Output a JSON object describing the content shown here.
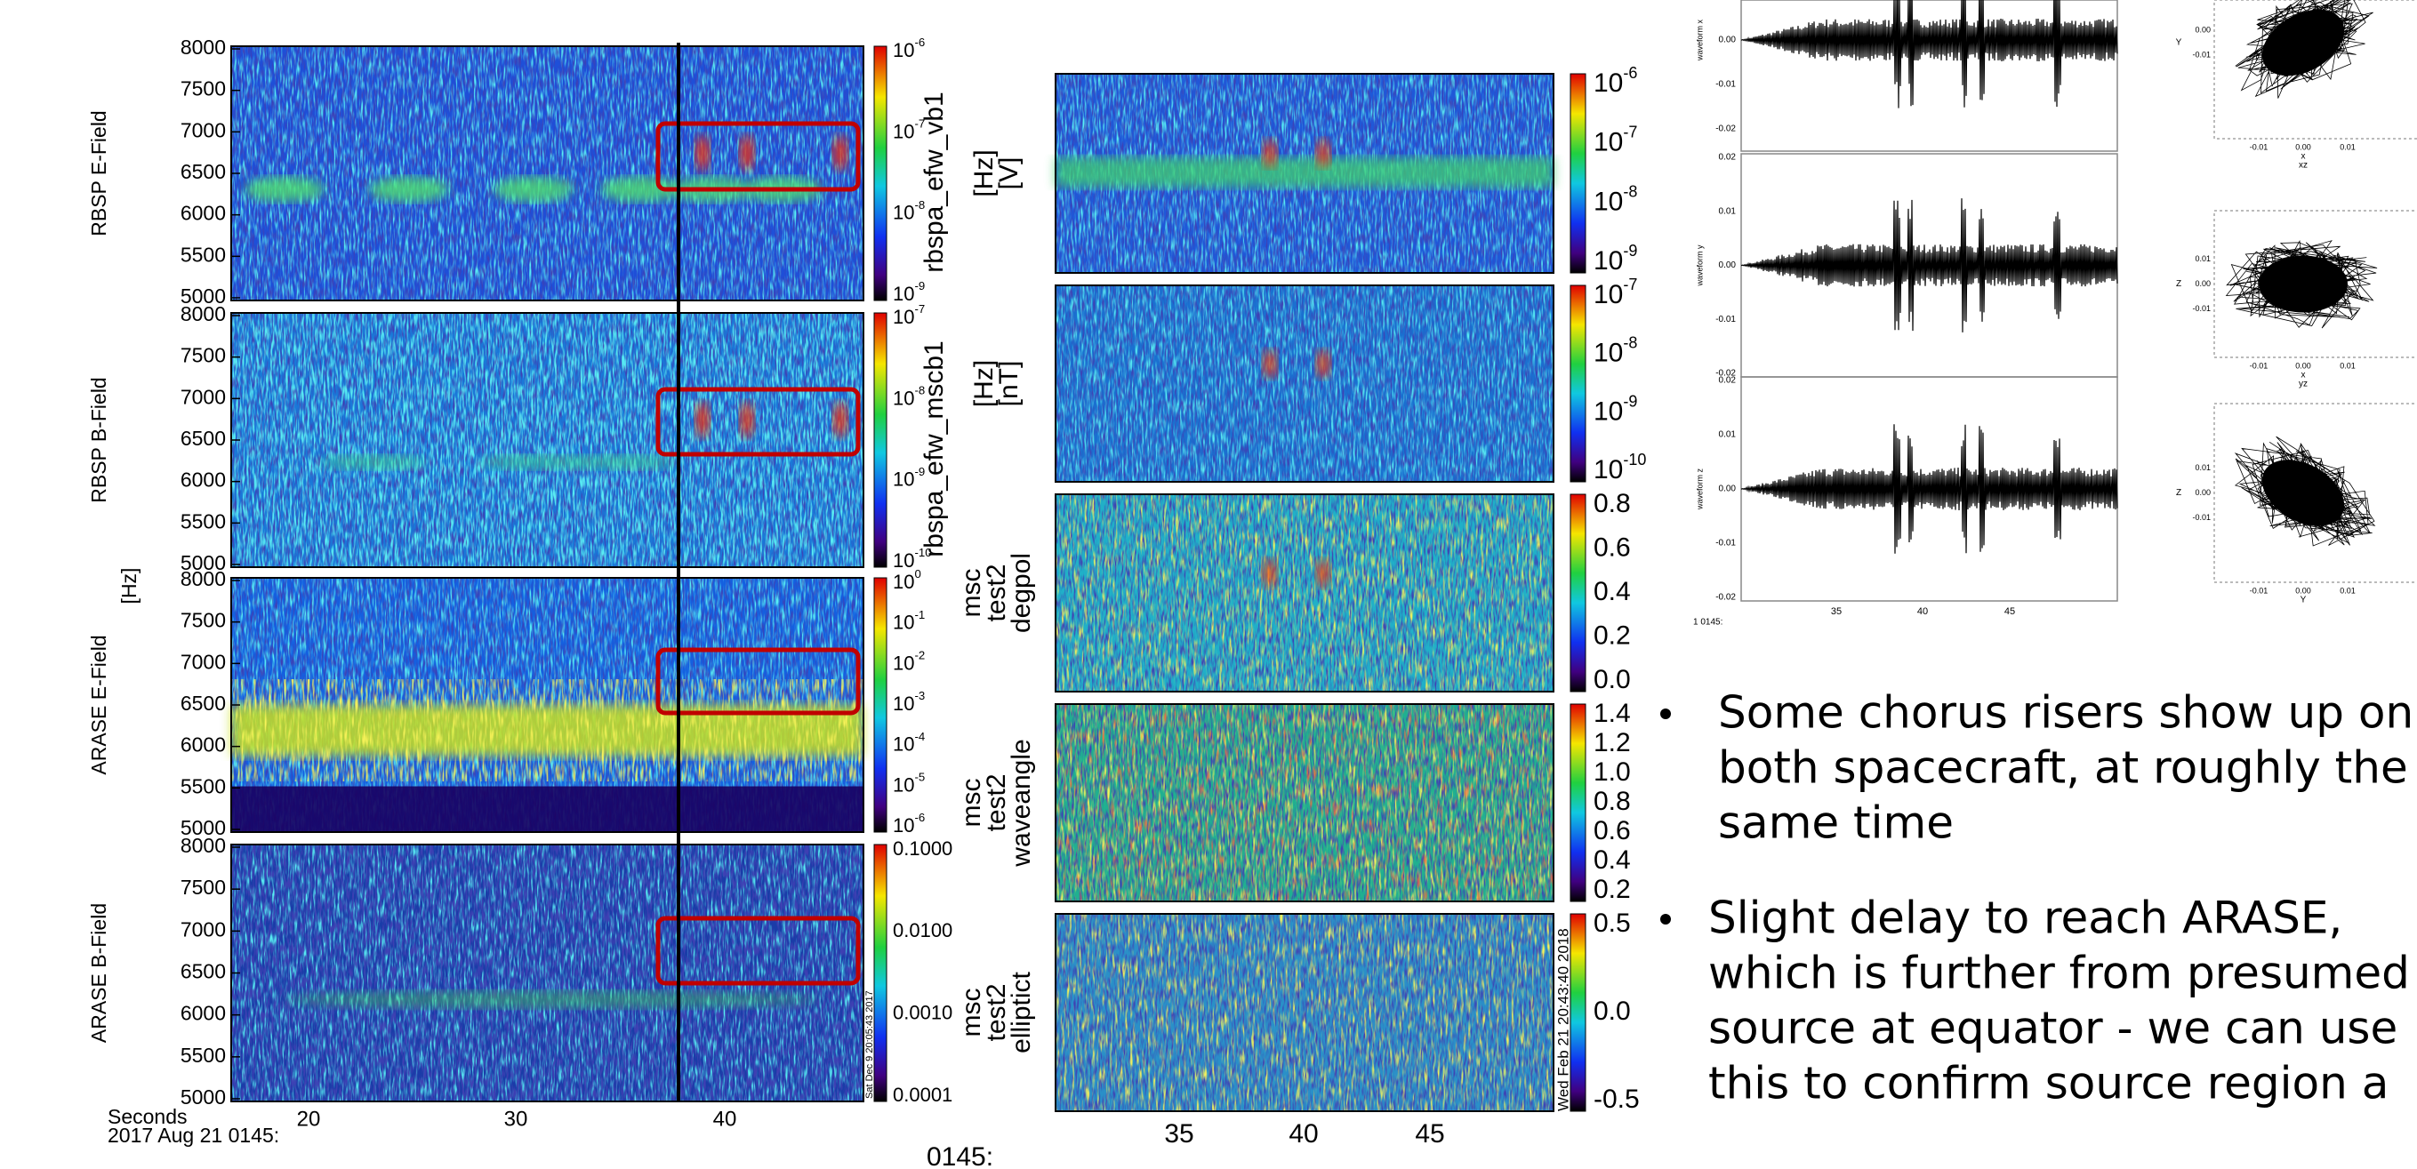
{
  "left_panel": {
    "panels": [
      {
        "label": "RBSP E-Field",
        "yticks": [
          "8000",
          "7500",
          "7000",
          "6500",
          "6000",
          "5500",
          "5000"
        ],
        "colorbar_title": "rbspa_efw_vb1",
        "colorbar_ticks": [
          {
            "base": "10",
            "exp": "-6"
          },
          {
            "base": "10",
            "exp": "-7"
          },
          {
            "base": "10",
            "exp": "-8"
          },
          {
            "base": "10",
            "exp": "-9"
          }
        ]
      },
      {
        "label": "RBSP B-Field",
        "yticks": [
          "8000",
          "7500",
          "7000",
          "6500",
          "6000",
          "5500",
          "5000"
        ],
        "colorbar_title": "rbspa_efw_mscb1",
        "colorbar_ticks": [
          {
            "base": "10",
            "exp": "-7"
          },
          {
            "base": "10",
            "exp": "-8"
          },
          {
            "base": "10",
            "exp": "-9"
          },
          {
            "base": "10",
            "exp": "-10"
          }
        ]
      },
      {
        "label": "ARASE E-Field",
        "yticks": [
          "8000",
          "7500",
          "7000",
          "6500",
          "6000",
          "5500",
          "5000"
        ],
        "colorbar_ticks": [
          {
            "base": "10",
            "exp": "0"
          },
          {
            "base": "10",
            "exp": "-1"
          },
          {
            "base": "10",
            "exp": "-2"
          },
          {
            "base": "10",
            "exp": "-3"
          },
          {
            "base": "10",
            "exp": "-4"
          },
          {
            "base": "10",
            "exp": "-5"
          },
          {
            "base": "10",
            "exp": "-6"
          }
        ]
      },
      {
        "label": "ARASE B-Field",
        "yticks": [
          "8000",
          "7500",
          "7000",
          "6500",
          "6000",
          "5500",
          "5000"
        ],
        "colorbar_ticks": [
          "0.1000",
          "0.0100",
          "0.0010",
          "0.0001"
        ]
      }
    ],
    "y_unit": "[Hz]",
    "xticks": [
      "20",
      "30",
      "40"
    ],
    "x_title": "Seconds",
    "x_date": "2017 Aug 21 0145:",
    "stamp": "Sat Dec 9 20:05:43 2017"
  },
  "middle_panel": {
    "panels": [
      {
        "title_lines": [
          "[Hz]",
          "[V]"
        ],
        "colorbar_ticks": [
          {
            "base": "10",
            "exp": "-6"
          },
          {
            "base": "10",
            "exp": "-7"
          },
          {
            "base": "10",
            "exp": "-8"
          },
          {
            "base": "10",
            "exp": "-9"
          }
        ]
      },
      {
        "title_lines": [
          "[Hz]",
          "[nT]"
        ],
        "colorbar_ticks": [
          {
            "base": "10",
            "exp": "-7"
          },
          {
            "base": "10",
            "exp": "-8"
          },
          {
            "base": "10",
            "exp": "-9"
          },
          {
            "base": "10",
            "exp": "-10"
          }
        ]
      },
      {
        "title_lines": [
          "msc",
          "test2",
          "degpol"
        ],
        "colorbar_ticks": [
          "0.8",
          "0.6",
          "0.4",
          "0.2",
          "0.0"
        ]
      },
      {
        "title_lines": [
          "msc",
          "test2",
          "waveangle"
        ],
        "colorbar_ticks": [
          "1.4",
          "1.2",
          "1.0",
          "0.8",
          "0.6",
          "0.4",
          "0.2"
        ]
      },
      {
        "title_lines": [
          "msc",
          "test2",
          "elliptict"
        ],
        "colorbar_ticks": [
          "0.5",
          "0.0",
          "-0.5"
        ]
      }
    ],
    "xticks": [
      "35",
      "40",
      "45"
    ],
    "x_date": "0145:",
    "stamp": "Wed Feb 21 20:43:40 2018"
  },
  "waveforms": {
    "panels": [
      {
        "label": "waveform x",
        "yticks": [
          "0.00",
          "-0.01",
          "-0.02"
        ]
      },
      {
        "label": "waveform y",
        "yticks": [
          "0.02",
          "0.01",
          "0.00",
          "-0.01",
          "-0.02"
        ]
      },
      {
        "label": "waveform z",
        "yticks": [
          "0.02",
          "0.01",
          "0.00",
          "-0.01",
          "-0.02"
        ]
      }
    ],
    "xticks": [
      "35",
      "40",
      "45"
    ],
    "x_date": "1 0145:"
  },
  "hodograms": {
    "panels": [
      {
        "y_label": "Y",
        "x_label": "x",
        "title": "xz",
        "yticks": [
          "0.00",
          "-0.01"
        ],
        "xticks": [
          "-0.01",
          "0.00",
          "0.01"
        ]
      },
      {
        "y_label": "Z",
        "x_label": "x",
        "title": "yz",
        "yticks": [
          "0.01",
          "0.00",
          "-0.01"
        ],
        "xticks": [
          "-0.01",
          "0.00",
          "0.01"
        ]
      },
      {
        "y_label": "Z",
        "x_label": "Y",
        "yticks": [
          "0.01",
          "0.00",
          "-0.01"
        ],
        "xticks": [
          "-0.01",
          "0.00",
          "0.01"
        ]
      }
    ]
  },
  "bullets": [
    {
      "lines": [
        "Some chorus risers show up on",
        "both spacecraft, at roughly the",
        "same time"
      ]
    },
    {
      "lines": [
        "Slight delay to reach ARASE,",
        "which is further from presumed",
        "source at equator - we can use",
        "this to confirm source region a"
      ]
    }
  ]
}
